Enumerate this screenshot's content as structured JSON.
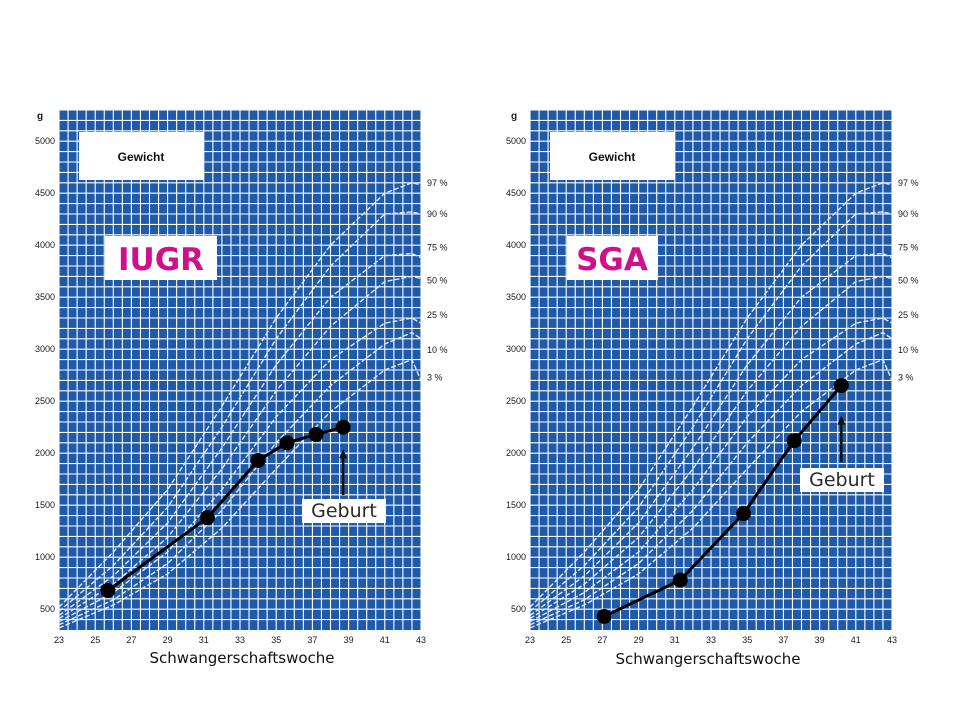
{
  "colors": {
    "grid_blue": "#1e5aa8",
    "curve": "#dfe9f7",
    "label_pink": "#d0108a",
    "data_line": "#000000"
  },
  "chart_data": [
    {
      "type": "line",
      "unit": "g",
      "box_label": "Gewicht",
      "title": "IUGR",
      "xlabel": "Schwangerschaftswoche",
      "xlim": [
        23,
        43
      ],
      "ylim": [
        300,
        5300
      ],
      "xticks": [
        "23",
        "25",
        "27",
        "29",
        "31",
        "33",
        "35",
        "37",
        "39",
        "41",
        "43"
      ],
      "yticks": [
        "500",
        "1000",
        "1500",
        "2000",
        "2500",
        "3000",
        "3500",
        "4000",
        "4500",
        "5000"
      ],
      "percentile_labels": [
        "97 %",
        "90 %",
        "75 %",
        "50 %",
        "25 %",
        "10 %",
        "3 %"
      ],
      "series": [
        {
          "values": [
            [
              25.7,
              680
            ],
            [
              31.2,
              1380
            ],
            [
              34.0,
              1930
            ],
            [
              35.6,
              2100
            ],
            [
              37.2,
              2180
            ],
            [
              38.7,
              2250
            ]
          ]
        }
      ],
      "annotation": {
        "text": "Geburt",
        "arrow_x": 38.7
      }
    },
    {
      "type": "line",
      "unit": "g",
      "box_label": "Gewicht",
      "title": "SGA",
      "xlabel": "Schwangerschaftswoche",
      "xlim": [
        23,
        43
      ],
      "ylim": [
        300,
        5300
      ],
      "xticks": [
        "23",
        "25",
        "27",
        "29",
        "31",
        "33",
        "35",
        "37",
        "39",
        "41",
        "43"
      ],
      "yticks": [
        "500",
        "1000",
        "1500",
        "2000",
        "2500",
        "3000",
        "3500",
        "4000",
        "4500",
        "5000"
      ],
      "percentile_labels": [
        "97 %",
        "90 %",
        "75 %",
        "50 %",
        "25 %",
        "10 %",
        "3 %"
      ],
      "series": [
        {
          "values": [
            [
              27.1,
              430
            ],
            [
              31.3,
              780
            ],
            [
              34.8,
              1420
            ],
            [
              37.6,
              2120
            ],
            [
              40.2,
              2650
            ]
          ]
        }
      ],
      "annotation": {
        "text": "Geburt",
        "arrow_x": 40.2
      }
    }
  ]
}
